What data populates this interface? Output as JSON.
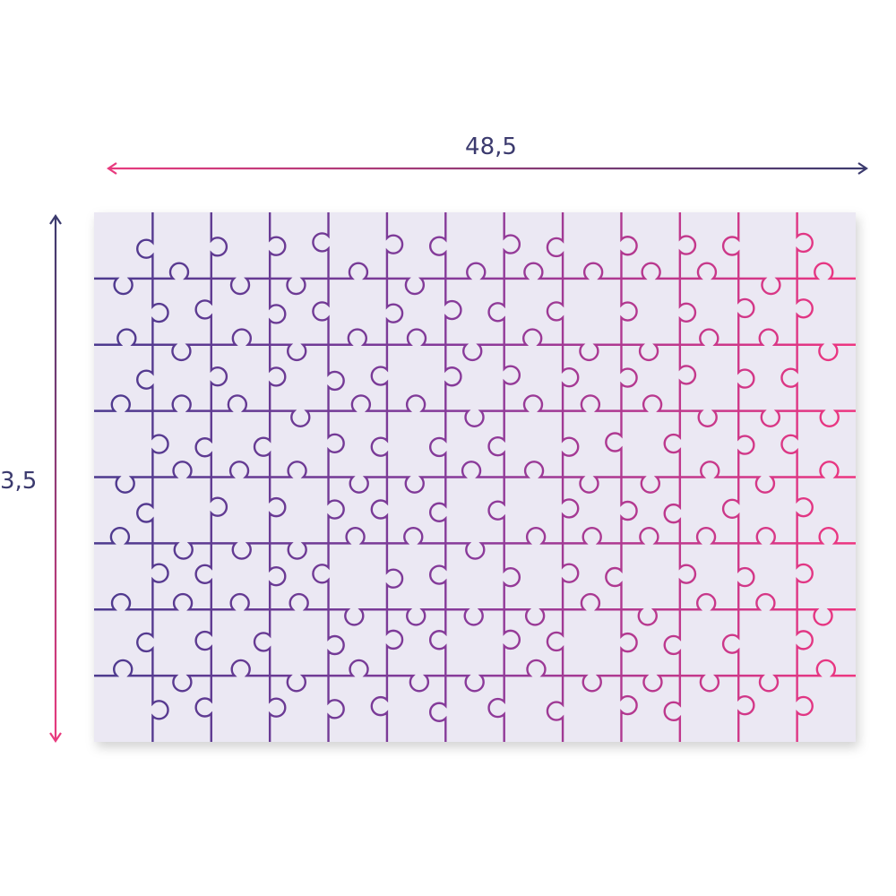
{
  "dimensions": {
    "width": "48,5",
    "height": "3,5"
  }
}
